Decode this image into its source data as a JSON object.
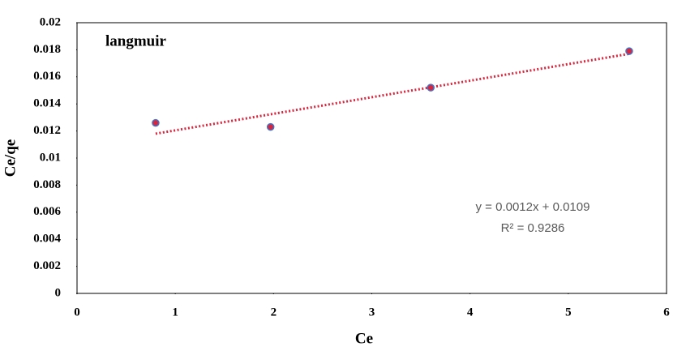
{
  "chart_data": {
    "type": "scatter",
    "title": "langmuir",
    "xlabel": "Ce",
    "ylabel": "Ce/qe",
    "annotations": [
      "y = 0.0012x + 0.0109",
      "R² = 0.9286"
    ],
    "series": [
      {
        "x": [
          0.8,
          1.97,
          3.6,
          5.62
        ],
        "values": [
          0.0126,
          0.0123,
          0.0152,
          0.0179
        ],
        "color": "#d7263d",
        "edgecolor": "#4472c4"
      }
    ],
    "trendline": {
      "x": [
        0.8,
        5.62
      ],
      "values": [
        0.0118,
        0.0177
      ],
      "color": "#d7263d"
    },
    "xlim": [
      0,
      6
    ],
    "xticks": [
      0,
      1,
      2,
      3,
      4,
      5,
      6
    ],
    "ylim": [
      0,
      0.02
    ],
    "yticks": [
      0,
      0.002,
      0.004,
      0.006,
      0.008,
      0.01,
      0.012,
      0.014,
      0.016,
      0.018,
      0.02
    ],
    "grid": false
  }
}
